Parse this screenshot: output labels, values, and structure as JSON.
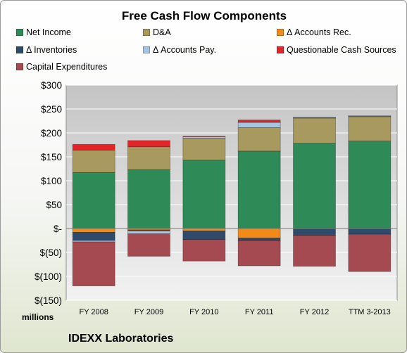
{
  "chart_data": {
    "type": "bar",
    "stacked": true,
    "title": "Free Cash Flow Components",
    "company": "IDEXX Laboratories",
    "units_label": "millions",
    "categories": [
      "FY 2008",
      "FY 2009",
      "FY 2010",
      "FY 2011",
      "FY 2012",
      "TTM 3-2013"
    ],
    "ylim": [
      -150,
      300
    ],
    "yticks": [
      300,
      250,
      200,
      150,
      100,
      50,
      0,
      -50,
      -100,
      -150
    ],
    "ytick_labels": [
      "$300",
      "$250",
      "$200",
      "$150",
      "$100",
      "$50",
      "$-",
      "$(50)",
      "$(100)",
      "$(150)"
    ],
    "grid": true,
    "legend_position": "top",
    "series": [
      {
        "name": "Net Income",
        "color": "#2e8b57",
        "values": [
          117,
          123,
          143,
          162,
          178,
          183
        ]
      },
      {
        "name": "D&A",
        "color": "#a89a5f",
        "values": [
          47,
          48,
          46,
          49,
          53,
          51
        ]
      },
      {
        "name": "Δ Accounts Rec.",
        "color": "#f28a19",
        "values": [
          -8,
          -3,
          -5,
          -20,
          1,
          1
        ]
      },
      {
        "name": "Δ Inventories",
        "color": "#2f4a6b",
        "values": [
          -17,
          -2,
          -18,
          -5,
          -14,
          -12
        ]
      },
      {
        "name": "Δ Accounts Pay.",
        "color": "#a9c4e2",
        "values": [
          -3,
          -6,
          3,
          11,
          1,
          1
        ]
      },
      {
        "name": "Questionable Cash Sources",
        "color": "#e32428",
        "values": [
          12,
          13,
          1,
          5,
          0,
          0
        ]
      },
      {
        "name": "Capital Expenditures",
        "color": "#a54a50",
        "values": [
          -92,
          -47,
          -45,
          -53,
          -65,
          -78
        ]
      }
    ]
  }
}
